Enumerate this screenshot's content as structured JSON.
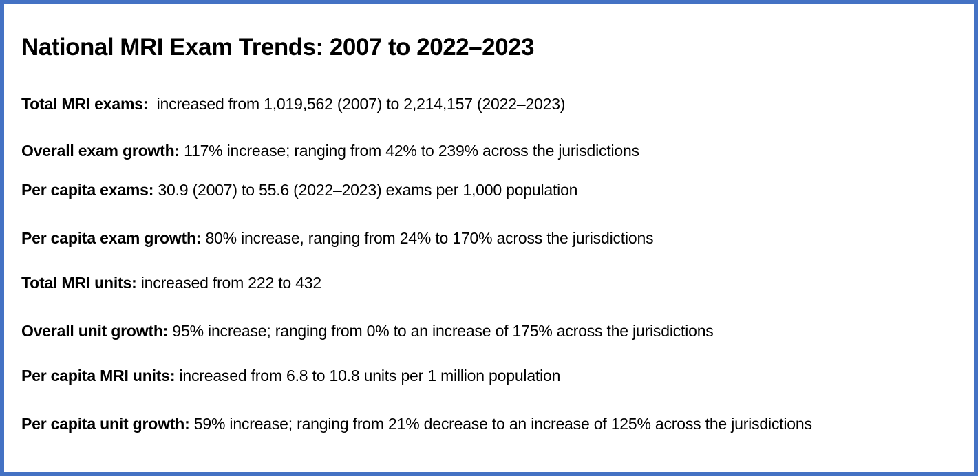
{
  "page": {
    "accent_border_color": "#4472C4",
    "text_color": "#000000",
    "title": "National MRI Exam Trends: 2007 to 2022–2023",
    "items": [
      {
        "label": "Total MRI exams:",
        "text": "  increased from 1,019,562 (2007) to 2,214,157 (2022–2023)"
      },
      {
        "label": "Overall exam growth:",
        "text": " 117% increase; ranging from 42% to 239% across the jurisdictions"
      },
      {
        "label": "Per capita exams:",
        "text": " 30.9 (2007) to 55.6 (2022–2023) exams per 1,000 population"
      },
      {
        "label": "Per capita exam growth:",
        "text": " 80% increase, ranging from 24% to 170% across the jurisdictions"
      },
      {
        "label": "Total MRI units:",
        "text": " increased from 222 to 432"
      },
      {
        "label": "Overall unit growth:",
        "text": " 95% increase; ranging from 0% to an increase of 175% across the jurisdictions"
      },
      {
        "label": "Per capita MRI units:",
        "text": " increased from 6.8 to 10.8 units per 1 million population"
      },
      {
        "label": "Per capita unit growth:",
        "text": " 59% increase; ranging from 21% decrease to an increase of 125% across the jurisdictions"
      }
    ]
  }
}
